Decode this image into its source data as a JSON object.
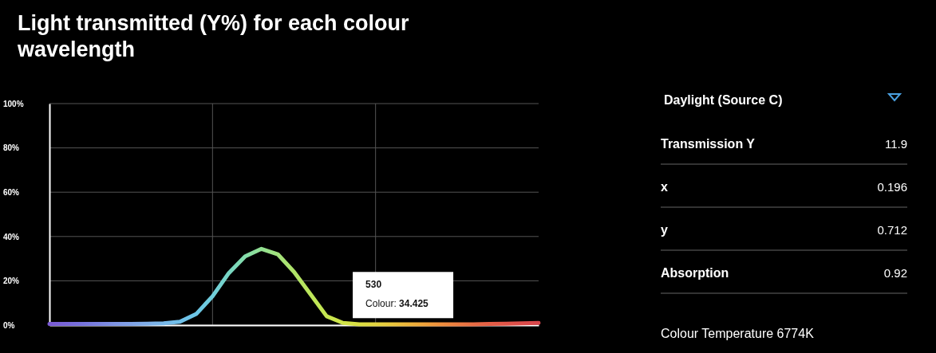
{
  "chart_data": [
    {
      "type": "line",
      "title": "Light transmitted (Y%) for each colour wavelength",
      "categories": [
        null,
        null,
        null,
        null,
        null,
        null,
        null,
        null,
        null,
        null,
        null,
        null,
        null,
        null,
        null,
        null,
        null,
        null,
        null,
        null,
        null,
        null,
        null,
        null,
        null,
        null,
        null,
        null,
        null,
        null,
        null
      ],
      "series": [
        {
          "values": [
            0.5,
            0.5,
            0.5,
            0.5,
            0.5,
            0.5,
            0.6,
            0.8,
            1.5,
            5,
            13,
            23.5,
            31,
            34.425,
            32,
            24,
            14,
            4,
            1,
            0.4,
            0.4,
            0.4,
            0.4,
            0.4,
            0.4,
            0.4,
            0.4,
            0.5,
            0.6,
            0.8,
            1
          ],
          "colors": [
            "#7a5ad4",
            "#7866d8",
            "#7672dc",
            "#7a82e0",
            "#7e94e4",
            "#80a2e6",
            "#7eaee8",
            "#78b8ea",
            "#70c0ea",
            "#6cc6e6",
            "#70cedc",
            "#78d6c4",
            "#84dcaa",
            "#92e092",
            "#a2e27c",
            "#b0e468",
            "#bce65a",
            "#c6e650",
            "#d0e448",
            "#dade42",
            "#e2d440",
            "#e8c63c",
            "#ecb43a",
            "#eea23a",
            "#ee8e3c",
            "#ec7c40",
            "#e86c44",
            "#e45e46",
            "#e05448",
            "#dc4c4a",
            "#d8464c"
          ]
        }
      ],
      "ylim": [
        0,
        100
      ],
      "yticks": [
        {
          "value": 0,
          "label": "0%"
        },
        {
          "value": 20,
          "label": "20%"
        },
        {
          "value": 40,
          "label": "40%"
        },
        {
          "value": 60,
          "label": "60%"
        },
        {
          "value": 80,
          "label": "80%"
        },
        {
          "value": 100,
          "label": "100%"
        }
      ],
      "tick_labels": "y",
      "grid": true,
      "marker": "none",
      "annotations": [
        "530",
        "Colour: 34.425"
      ]
    },
    {
      "type": "other",
      "title": "Daylight (Source C)",
      "annotations": [
        "Transmission Y",
        "11.9",
        "x",
        "0.196",
        "y",
        "0.712",
        "Absorption",
        "0.92",
        "Colour Temperature 6774K"
      ]
    }
  ]
}
